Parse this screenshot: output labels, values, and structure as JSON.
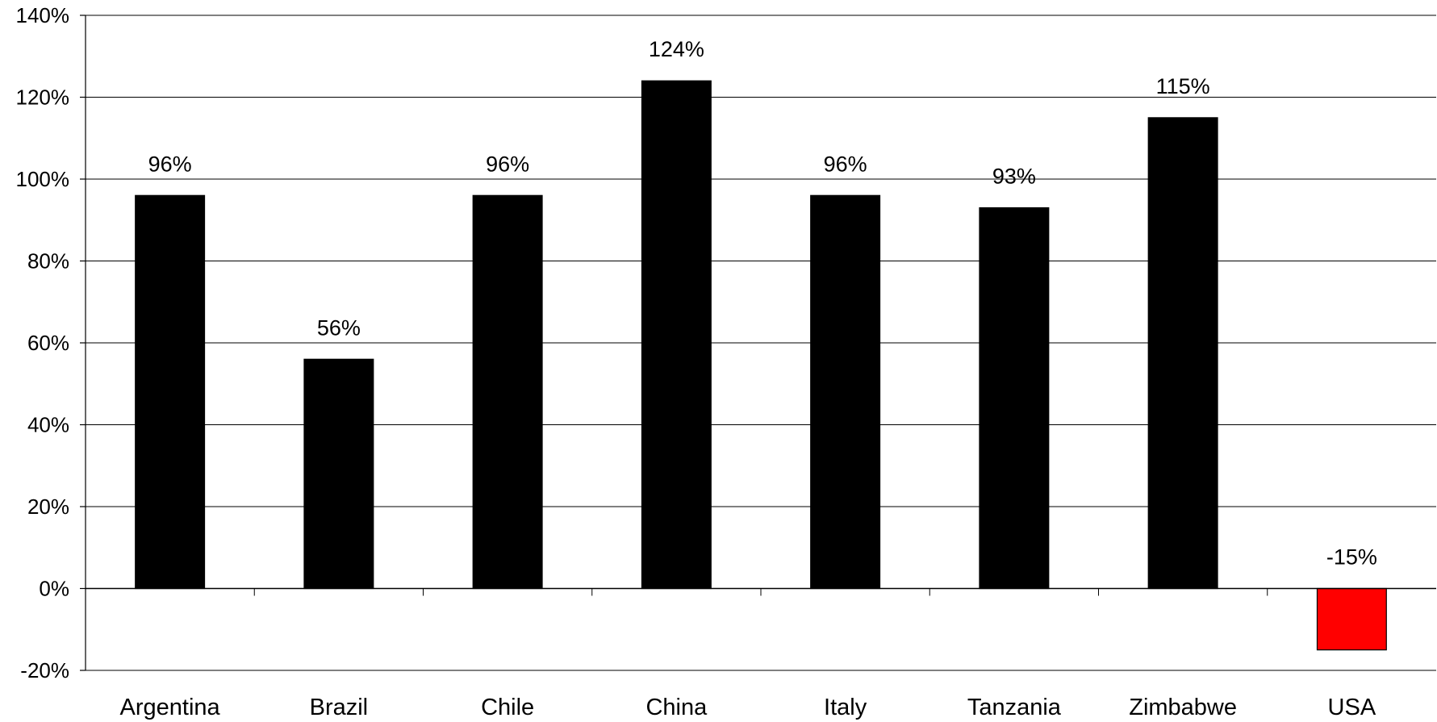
{
  "chart_data": {
    "type": "bar",
    "title": "",
    "xlabel": "",
    "ylabel": "",
    "categories": [
      "Argentina",
      "Brazil",
      "Chile",
      "China",
      "Italy",
      "Tanzania",
      "Zimbabwe",
      "USA"
    ],
    "values": [
      96,
      56,
      96,
      124,
      96,
      93,
      115,
      -15
    ],
    "data_labels": [
      "96%",
      "56%",
      "96%",
      "124%",
      "96%",
      "93%",
      "115%",
      "-15%"
    ],
    "ylim": [
      -20,
      140
    ],
    "yticks": [
      -20,
      0,
      20,
      40,
      60,
      80,
      100,
      120,
      140
    ],
    "ytick_labels": [
      "-20%",
      "0%",
      "20%",
      "40%",
      "60%",
      "80%",
      "100%",
      "120%",
      "140%"
    ],
    "grid": true,
    "legend": "none",
    "colors": {
      "positive_bar": "#000000",
      "negative_bar": "#ff0000",
      "grid": "#000000"
    }
  }
}
